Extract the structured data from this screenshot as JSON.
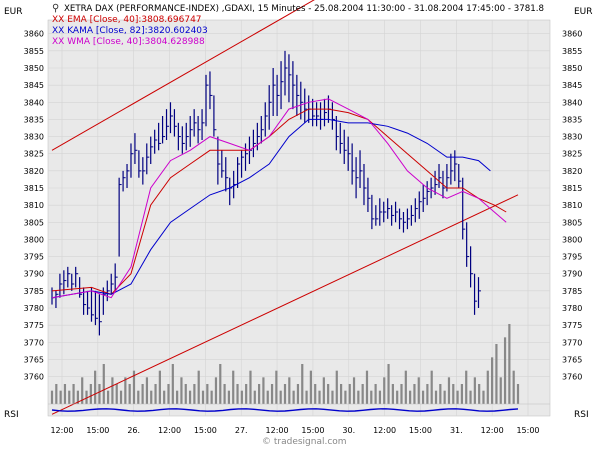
{
  "header": {
    "title": "XETRA DAX (PERFORMANCE-INDEX) ,GDAXI, 15 Minutes - 25.08.2004 11:30:00 - 31.08.2004 17:45:00 - 3781.8",
    "indicators": [
      {
        "label": "XX EMA [Close, 40]:3808.696747",
        "color": "#cc0000"
      },
      {
        "label": "XX KAMA [Close, 82]:3820.602403",
        "color": "#0000cc"
      },
      {
        "label": "XX WMA [Close, 40]:3804.628988",
        "color": "#cc00cc"
      }
    ]
  },
  "axis_unit_left": "EUR",
  "axis_unit_right": "EUR",
  "rsi_label": "RSI",
  "watermark": "© tradesignal.com",
  "chart_data": {
    "type": "line",
    "title": "XETRA DAX (PERFORMANCE-INDEX) ,GDAXI, 15 Minutes",
    "ylim": [
      3752,
      3864
    ],
    "yticks": [
      3760,
      3765,
      3770,
      3775,
      3780,
      3785,
      3790,
      3795,
      3800,
      3805,
      3810,
      3815,
      3820,
      3825,
      3830,
      3835,
      3840,
      3845,
      3850,
      3855,
      3860
    ],
    "xticks": [
      "12:00",
      "15:00",
      "26.",
      "12:00",
      "15:00",
      "27.",
      "12:00",
      "15:00",
      "30.",
      "12:00",
      "15:00",
      "31.",
      "12:00",
      "15:00"
    ],
    "colors": {
      "bars": "#000080",
      "ema": "#cc0000",
      "kama": "#0000cc",
      "wma": "#cc00cc",
      "channel": "#cc0000",
      "volume": "#888888",
      "rsi": "#0000cc"
    },
    "channel": [
      {
        "name": "upper",
        "points": [
          [
            0,
            3826
          ],
          [
            118,
            3904
          ]
        ]
      },
      {
        "name": "lower",
        "points": [
          [
            0,
            3749
          ],
          [
            118,
            3813
          ]
        ]
      }
    ],
    "series": [
      {
        "name": "EMA [Close, 40]",
        "points": [
          [
            0,
            3785
          ],
          [
            10,
            3786
          ],
          [
            15,
            3784
          ],
          [
            20,
            3790
          ],
          [
            25,
            3810
          ],
          [
            30,
            3818
          ],
          [
            35,
            3822
          ],
          [
            40,
            3826
          ],
          [
            45,
            3826
          ],
          [
            50,
            3826
          ],
          [
            55,
            3830
          ],
          [
            60,
            3835
          ],
          [
            65,
            3838
          ],
          [
            70,
            3838
          ],
          [
            75,
            3837
          ],
          [
            80,
            3835
          ],
          [
            85,
            3830
          ],
          [
            90,
            3825
          ],
          [
            95,
            3820
          ],
          [
            100,
            3815
          ],
          [
            104,
            3815
          ],
          [
            108,
            3812
          ],
          [
            112,
            3810
          ],
          [
            115,
            3808
          ]
        ]
      },
      {
        "name": "KAMA [Close, 82]",
        "points": [
          [
            0,
            3783
          ],
          [
            10,
            3785
          ],
          [
            15,
            3784
          ],
          [
            20,
            3787
          ],
          [
            25,
            3797
          ],
          [
            30,
            3805
          ],
          [
            35,
            3809
          ],
          [
            40,
            3813
          ],
          [
            45,
            3815
          ],
          [
            50,
            3818
          ],
          [
            55,
            3822
          ],
          [
            60,
            3830
          ],
          [
            65,
            3835
          ],
          [
            70,
            3835
          ],
          [
            75,
            3834
          ],
          [
            80,
            3834
          ],
          [
            85,
            3833
          ],
          [
            90,
            3831
          ],
          [
            95,
            3828
          ],
          [
            100,
            3824
          ],
          [
            104,
            3824
          ],
          [
            108,
            3823
          ],
          [
            111,
            3820
          ]
        ]
      },
      {
        "name": "WMA [Close, 40]",
        "points": [
          [
            0,
            3783
          ],
          [
            10,
            3785
          ],
          [
            15,
            3783
          ],
          [
            20,
            3792
          ],
          [
            25,
            3815
          ],
          [
            30,
            3823
          ],
          [
            35,
            3826
          ],
          [
            40,
            3830
          ],
          [
            45,
            3828
          ],
          [
            50,
            3826
          ],
          [
            55,
            3830
          ],
          [
            60,
            3838
          ],
          [
            65,
            3840
          ],
          [
            70,
            3841
          ],
          [
            75,
            3838
          ],
          [
            80,
            3835
          ],
          [
            85,
            3828
          ],
          [
            90,
            3820
          ],
          [
            95,
            3815
          ],
          [
            100,
            3812
          ],
          [
            104,
            3814
          ],
          [
            108,
            3812
          ],
          [
            112,
            3808
          ],
          [
            115,
            3805
          ]
        ]
      }
    ],
    "price": [
      {
        "x": 0,
        "high": 3786,
        "low": 3781,
        "close": 3783
      },
      {
        "x": 1,
        "high": 3785,
        "low": 3780,
        "close": 3784
      },
      {
        "x": 2,
        "high": 3790,
        "low": 3783,
        "close": 3787
      },
      {
        "x": 3,
        "high": 3791,
        "low": 3784,
        "close": 3788
      },
      {
        "x": 4,
        "high": 3792,
        "low": 3786,
        "close": 3790
      },
      {
        "x": 5,
        "high": 3790,
        "low": 3785,
        "close": 3787
      },
      {
        "x": 6,
        "high": 3792,
        "low": 3786,
        "close": 3790
      },
      {
        "x": 7,
        "high": 3789,
        "low": 3783,
        "close": 3784
      },
      {
        "x": 8,
        "high": 3786,
        "low": 3778,
        "close": 3781
      },
      {
        "x": 9,
        "high": 3785,
        "low": 3778,
        "close": 3780
      },
      {
        "x": 10,
        "high": 3786,
        "low": 3776,
        "close": 3778
      },
      {
        "x": 11,
        "high": 3785,
        "low": 3775,
        "close": 3777
      },
      {
        "x": 12,
        "high": 3784,
        "low": 3772,
        "close": 3776
      },
      {
        "x": 13,
        "high": 3786,
        "low": 3778,
        "close": 3784
      },
      {
        "x": 14,
        "high": 3788,
        "low": 3782,
        "close": 3785
      },
      {
        "x": 15,
        "high": 3790,
        "low": 3784,
        "close": 3787
      },
      {
        "x": 16,
        "high": 3793,
        "low": 3785,
        "close": 3789
      },
      {
        "x": 17,
        "high": 3818,
        "low": 3795,
        "close": 3816
      },
      {
        "x": 18,
        "high": 3820,
        "low": 3814,
        "close": 3818
      },
      {
        "x": 19,
        "high": 3822,
        "low": 3815,
        "close": 3820
      },
      {
        "x": 20,
        "high": 3828,
        "low": 3818,
        "close": 3825
      },
      {
        "x": 21,
        "high": 3831,
        "low": 3822,
        "close": 3826
      },
      {
        "x": 22,
        "high": 3826,
        "low": 3818,
        "close": 3820
      },
      {
        "x": 23,
        "high": 3824,
        "low": 3816,
        "close": 3820
      },
      {
        "x": 24,
        "high": 3828,
        "low": 3819,
        "close": 3824
      },
      {
        "x": 25,
        "high": 3830,
        "low": 3822,
        "close": 3827
      },
      {
        "x": 26,
        "high": 3832,
        "low": 3825,
        "close": 3829
      },
      {
        "x": 27,
        "high": 3834,
        "low": 3826,
        "close": 3828
      },
      {
        "x": 28,
        "high": 3836,
        "low": 3828,
        "close": 3830
      },
      {
        "x": 29,
        "high": 3838,
        "low": 3829,
        "close": 3833
      },
      {
        "x": 30,
        "high": 3840,
        "low": 3831,
        "close": 3836
      },
      {
        "x": 31,
        "high": 3838,
        "low": 3830,
        "close": 3833
      },
      {
        "x": 32,
        "high": 3834,
        "low": 3826,
        "close": 3830
      },
      {
        "x": 33,
        "high": 3833,
        "low": 3825,
        "close": 3828
      },
      {
        "x": 34,
        "high": 3834,
        "low": 3826,
        "close": 3830
      },
      {
        "x": 35,
        "high": 3836,
        "low": 3827,
        "close": 3832
      },
      {
        "x": 36,
        "high": 3838,
        "low": 3830,
        "close": 3834
      },
      {
        "x": 37,
        "high": 3836,
        "low": 3828,
        "close": 3832
      },
      {
        "x": 38,
        "high": 3838,
        "low": 3829,
        "close": 3834
      },
      {
        "x": 39,
        "high": 3848,
        "low": 3833,
        "close": 3845
      },
      {
        "x": 40,
        "high": 3849,
        "low": 3838,
        "close": 3842
      },
      {
        "x": 41,
        "high": 3842,
        "low": 3830,
        "close": 3832
      },
      {
        "x": 42,
        "high": 3830,
        "low": 3816,
        "close": 3822
      },
      {
        "x": 43,
        "high": 3826,
        "low": 3818,
        "close": 3820
      },
      {
        "x": 44,
        "high": 3824,
        "low": 3814,
        "close": 3818
      },
      {
        "x": 45,
        "high": 3818,
        "low": 3810,
        "close": 3815
      },
      {
        "x": 46,
        "high": 3820,
        "low": 3812,
        "close": 3816
      },
      {
        "x": 47,
        "high": 3824,
        "low": 3815,
        "close": 3822
      },
      {
        "x": 48,
        "high": 3826,
        "low": 3818,
        "close": 3824
      },
      {
        "x": 49,
        "high": 3828,
        "low": 3820,
        "close": 3825
      },
      {
        "x": 50,
        "high": 3830,
        "low": 3822,
        "close": 3826
      },
      {
        "x": 51,
        "high": 3832,
        "low": 3824,
        "close": 3828
      },
      {
        "x": 52,
        "high": 3834,
        "low": 3826,
        "close": 3830
      },
      {
        "x": 53,
        "high": 3836,
        "low": 3828,
        "close": 3832
      },
      {
        "x": 54,
        "high": 3840,
        "low": 3830,
        "close": 3836
      },
      {
        "x": 55,
        "high": 3845,
        "low": 3832,
        "close": 3840
      },
      {
        "x": 56,
        "high": 3850,
        "low": 3836,
        "close": 3845
      },
      {
        "x": 57,
        "high": 3848,
        "low": 3836,
        "close": 3842
      },
      {
        "x": 58,
        "high": 3852,
        "low": 3838,
        "close": 3846
      },
      {
        "x": 59,
        "high": 3855,
        "low": 3842,
        "close": 3850
      },
      {
        "x": 60,
        "high": 3854,
        "low": 3840,
        "close": 3848
      },
      {
        "x": 61,
        "high": 3852,
        "low": 3838,
        "close": 3845
      },
      {
        "x": 62,
        "high": 3848,
        "low": 3836,
        "close": 3842
      },
      {
        "x": 63,
        "high": 3846,
        "low": 3835,
        "close": 3840
      },
      {
        "x": 64,
        "high": 3844,
        "low": 3834,
        "close": 3838
      },
      {
        "x": 65,
        "high": 3842,
        "low": 3834,
        "close": 3838
      },
      {
        "x": 66,
        "high": 3841,
        "low": 3833,
        "close": 3836
      },
      {
        "x": 67,
        "high": 3840,
        "low": 3833,
        "close": 3836
      },
      {
        "x": 68,
        "high": 3840,
        "low": 3832,
        "close": 3835
      },
      {
        "x": 69,
        "high": 3841,
        "low": 3833,
        "close": 3837
      },
      {
        "x": 70,
        "high": 3842,
        "low": 3834,
        "close": 3838
      },
      {
        "x": 71,
        "high": 3840,
        "low": 3832,
        "close": 3835
      },
      {
        "x": 72,
        "high": 3836,
        "low": 3826,
        "close": 3830
      },
      {
        "x": 73,
        "high": 3834,
        "low": 3825,
        "close": 3828
      },
      {
        "x": 74,
        "high": 3832,
        "low": 3822,
        "close": 3826
      },
      {
        "x": 75,
        "high": 3830,
        "low": 3820,
        "close": 3825
      },
      {
        "x": 76,
        "high": 3828,
        "low": 3816,
        "close": 3820
      },
      {
        "x": 77,
        "high": 3824,
        "low": 3812,
        "close": 3818
      },
      {
        "x": 78,
        "high": 3826,
        "low": 3815,
        "close": 3820
      },
      {
        "x": 79,
        "high": 3822,
        "low": 3810,
        "close": 3815
      },
      {
        "x": 80,
        "high": 3818,
        "low": 3808,
        "close": 3812
      },
      {
        "x": 81,
        "high": 3813,
        "low": 3803,
        "close": 3806
      },
      {
        "x": 82,
        "high": 3810,
        "low": 3804,
        "close": 3806
      },
      {
        "x": 83,
        "high": 3812,
        "low": 3804,
        "close": 3808
      },
      {
        "x": 84,
        "high": 3811,
        "low": 3805,
        "close": 3808
      },
      {
        "x": 85,
        "high": 3812,
        "low": 3806,
        "close": 3809
      },
      {
        "x": 86,
        "high": 3810,
        "low": 3804,
        "close": 3807
      },
      {
        "x": 87,
        "high": 3811,
        "low": 3805,
        "close": 3808
      },
      {
        "x": 88,
        "high": 3809,
        "low": 3803,
        "close": 3806
      },
      {
        "x": 89,
        "high": 3808,
        "low": 3802,
        "close": 3805
      },
      {
        "x": 90,
        "high": 3809,
        "low": 3803,
        "close": 3806
      },
      {
        "x": 91,
        "high": 3810,
        "low": 3804,
        "close": 3807
      },
      {
        "x": 92,
        "high": 3812,
        "low": 3805,
        "close": 3809
      },
      {
        "x": 93,
        "high": 3814,
        "low": 3806,
        "close": 3811
      },
      {
        "x": 94,
        "high": 3816,
        "low": 3808,
        "close": 3812
      },
      {
        "x": 95,
        "high": 3817,
        "low": 3810,
        "close": 3814
      },
      {
        "x": 96,
        "high": 3818,
        "low": 3812,
        "close": 3815
      },
      {
        "x": 97,
        "high": 3820,
        "low": 3813,
        "close": 3816
      },
      {
        "x": 98,
        "high": 3822,
        "low": 3815,
        "close": 3818
      },
      {
        "x": 99,
        "high": 3820,
        "low": 3812,
        "close": 3815
      },
      {
        "x": 100,
        "high": 3822,
        "low": 3814,
        "close": 3818
      },
      {
        "x": 101,
        "high": 3825,
        "low": 3816,
        "close": 3820
      },
      {
        "x": 102,
        "high": 3826,
        "low": 3817,
        "close": 3822
      },
      {
        "x": 103,
        "high": 3822,
        "low": 3815,
        "close": 3817
      },
      {
        "x": 104,
        "high": 3818,
        "low": 3800,
        "close": 3803
      },
      {
        "x": 105,
        "high": 3805,
        "low": 3792,
        "close": 3795
      },
      {
        "x": 106,
        "high": 3798,
        "low": 3786,
        "close": 3790
      },
      {
        "x": 107,
        "high": 3790,
        "low": 3778,
        "close": 3782
      },
      {
        "x": 108,
        "high": 3789,
        "low": 3780,
        "close": 3785
      }
    ],
    "volume": [
      2,
      3,
      2,
      3,
      2,
      3,
      2,
      4,
      2,
      3,
      5,
      3,
      6,
      2,
      4,
      3,
      2,
      4,
      3,
      5,
      2,
      3,
      4,
      2,
      3,
      5,
      2,
      3,
      6,
      2,
      4,
      3,
      2,
      3,
      5,
      2,
      3,
      2,
      4,
      6,
      3,
      2,
      5,
      3,
      2,
      3,
      5,
      2,
      3,
      4,
      2,
      3,
      5,
      2,
      3,
      4,
      2,
      3,
      6,
      2,
      5,
      3,
      2,
      4,
      3,
      2,
      5,
      3,
      2,
      3,
      4,
      2,
      3,
      5,
      2,
      3,
      2,
      4,
      6,
      3,
      2,
      3,
      5,
      2,
      3,
      4,
      2,
      3,
      5,
      2,
      3,
      2,
      4,
      3,
      2,
      3,
      5,
      2,
      4,
      3,
      2,
      5,
      7,
      9,
      4,
      10,
      12,
      5,
      3
    ]
  }
}
